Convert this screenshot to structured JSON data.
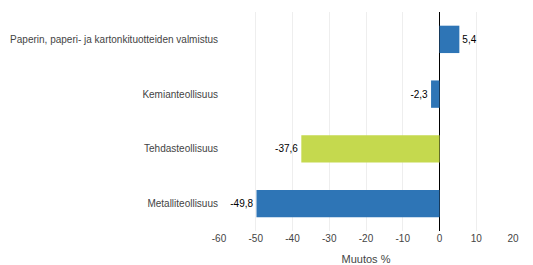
{
  "chart_data": {
    "type": "bar",
    "orientation": "horizontal",
    "categories": [
      "Metalliteollisuus",
      "Tehdasteollisuus",
      "Kemianteollisuus",
      "Paperin, paperi- ja kartonkituotteiden valmistus"
    ],
    "values": [
      -49.8,
      -37.6,
      -2.3,
      5.4
    ],
    "value_labels": [
      "-49,8",
      "-37,6",
      "-2,3",
      "5,4"
    ],
    "data_labels": true,
    "colors": [
      "#2e75b6",
      "#c5d94e",
      "#2e75b6",
      "#2e75b6"
    ],
    "xlabel": "Muutos %",
    "xlim": [
      -60,
      20
    ],
    "xticks": [
      -60,
      -50,
      -40,
      -30,
      -20,
      -10,
      0,
      10,
      20
    ],
    "grid": true
  }
}
